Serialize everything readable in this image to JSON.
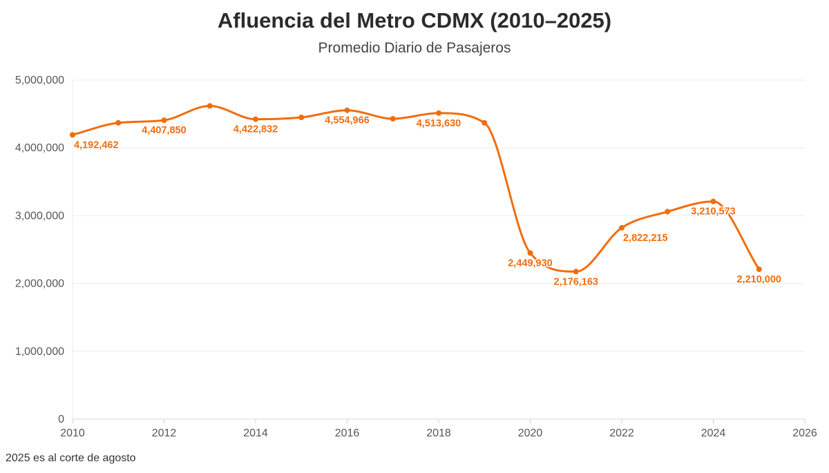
{
  "header": {
    "title": "Afluencia del Metro CDMX (2010–2025)",
    "subtitle": "Promedio Diario de Pasajeros"
  },
  "footnote": "2025 es al corte de agosto",
  "colors": {
    "line": "#F26C0D",
    "grid": "#ececec",
    "axis_text": "#555555"
  },
  "chart_data": {
    "type": "line",
    "title": "Afluencia del Metro CDMX (2010–2025)",
    "subtitle": "Promedio Diario de Pasajeros",
    "xlabel": "",
    "ylabel": "",
    "xlim": [
      2010,
      2026
    ],
    "ylim": [
      0,
      5000000
    ],
    "grid": true,
    "legend": "none",
    "x_ticks": [
      2010,
      2012,
      2014,
      2016,
      2018,
      2020,
      2022,
      2024,
      2026
    ],
    "y_ticks": [
      0,
      1000000,
      2000000,
      3000000,
      4000000,
      5000000
    ],
    "y_tick_labels": [
      "0",
      "1,000,000",
      "2,000,000",
      "3,000,000",
      "4,000,000",
      "5,000,000"
    ],
    "series": [
      {
        "name": "Promedio Diario de Pasajeros",
        "x": [
          2010,
          2011,
          2012,
          2013,
          2014,
          2015,
          2016,
          2017,
          2018,
          2019,
          2020,
          2021,
          2022,
          2023,
          2024,
          2025
        ],
        "values": [
          4192462,
          4370000,
          4407850,
          4620000,
          4422832,
          4450000,
          4554966,
          4430000,
          4513630,
          4370000,
          2449930,
          2176163,
          2822215,
          3060000,
          3210573,
          2210000
        ]
      }
    ],
    "data_labels": [
      {
        "x": 2010,
        "text": "4,192,462",
        "pos": "below-right"
      },
      {
        "x": 2012,
        "text": "4,407,850",
        "pos": "below"
      },
      {
        "x": 2014,
        "text": "4,422,832",
        "pos": "below"
      },
      {
        "x": 2016,
        "text": "4,554,966",
        "pos": "below"
      },
      {
        "x": 2018,
        "text": "4,513,630",
        "pos": "below"
      },
      {
        "x": 2020,
        "text": "2,449,930",
        "pos": "below"
      },
      {
        "x": 2021,
        "text": "2,176,163",
        "pos": "below"
      },
      {
        "x": 2022,
        "text": "2,822,215",
        "pos": "below-right"
      },
      {
        "x": 2024,
        "text": "3,210,573",
        "pos": "below"
      },
      {
        "x": 2025,
        "text": "2,210,000",
        "pos": "below"
      }
    ]
  }
}
